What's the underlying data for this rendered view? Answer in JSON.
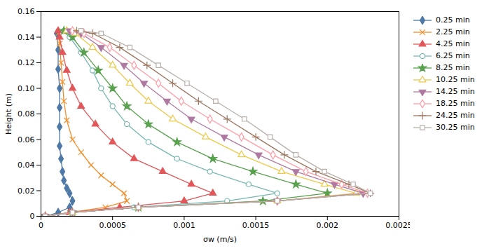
{
  "chart_data": {
    "type": "line",
    "xlabel": "σw (m/s)",
    "ylabel": "Height (m)",
    "xlim": [
      0,
      0.0025
    ],
    "ylim": [
      0,
      0.16
    ],
    "xticks": [
      0,
      0.0005,
      0.001,
      0.0015,
      0.002,
      0.0025
    ],
    "yticks": [
      0,
      0.02,
      0.04,
      0.06,
      0.08,
      {
        "value": 0.1,
        "label": "0.10"
      },
      0.12,
      0.14,
      0.16
    ],
    "grid": false,
    "legend": "right",
    "series": [
      {
        "name": "0.25 min",
        "marker": "diamond",
        "x": [
          3e-05,
          0.00012,
          0.0002,
          0.00022,
          0.0002,
          0.00018,
          0.00016,
          0.00015,
          0.00014,
          0.00013,
          0.00013,
          0.00013,
          0.00013,
          0.00012,
          0.00012,
          0.00011
        ],
        "values": [
          0.0,
          0.003,
          0.007,
          0.012,
          0.018,
          0.022,
          0.028,
          0.035,
          0.045,
          0.055,
          0.07,
          0.085,
          0.1,
          0.115,
          0.13,
          0.143
        ]
      },
      {
        "name": "2.25 min",
        "marker": "x",
        "x": [
          3e-05,
          0.0002,
          0.00045,
          0.0006,
          0.00058,
          0.0005,
          0.00042,
          0.00035,
          0.00028,
          0.00022,
          0.00018,
          0.00016,
          0.00015,
          0.00014,
          0.00013,
          0.00012
        ],
        "values": [
          0.0,
          0.003,
          0.007,
          0.012,
          0.018,
          0.025,
          0.032,
          0.04,
          0.05,
          0.06,
          0.075,
          0.09,
          0.105,
          0.12,
          0.135,
          0.143
        ]
      },
      {
        "name": "4.25 min",
        "marker": "triangle",
        "x": [
          3e-05,
          0.0002,
          0.00055,
          0.001,
          0.0012,
          0.00105,
          0.00085,
          0.00065,
          0.0005,
          0.00038,
          0.00028,
          0.00022,
          0.00018,
          0.00015,
          0.00013,
          0.00012
        ],
        "values": [
          0.0,
          0.003,
          0.007,
          0.012,
          0.018,
          0.025,
          0.035,
          0.045,
          0.058,
          0.072,
          0.086,
          0.1,
          0.114,
          0.128,
          0.14,
          0.145
        ]
      },
      {
        "name": "6.25 min",
        "marker": "circle-open",
        "x": [
          3e-05,
          0.00022,
          0.00065,
          0.0013,
          0.00165,
          0.00145,
          0.00118,
          0.00095,
          0.00075,
          0.0006,
          0.0005,
          0.00042,
          0.00036,
          0.00028,
          0.0002,
          0.00016
        ],
        "values": [
          0.0,
          0.003,
          0.007,
          0.012,
          0.018,
          0.025,
          0.035,
          0.045,
          0.058,
          0.072,
          0.086,
          0.1,
          0.114,
          0.128,
          0.14,
          0.145
        ]
      },
      {
        "name": "8.25 min",
        "marker": "star",
        "x": [
          3e-05,
          0.00022,
          0.00068,
          0.00155,
          0.002,
          0.00178,
          0.00148,
          0.0012,
          0.00095,
          0.00075,
          0.0006,
          0.0005,
          0.0004,
          0.0003,
          0.00022,
          0.00016
        ],
        "values": [
          0.0,
          0.003,
          0.007,
          0.012,
          0.018,
          0.025,
          0.035,
          0.045,
          0.058,
          0.072,
          0.086,
          0.1,
          0.114,
          0.128,
          0.14,
          0.145
        ]
      },
      {
        "name": "10.25 min",
        "marker": "triangle-open",
        "x": [
          3e-05,
          0.00022,
          0.00068,
          0.00165,
          0.0022,
          0.00198,
          0.00168,
          0.0014,
          0.00115,
          0.00092,
          0.00075,
          0.00062,
          0.0005,
          0.00036,
          0.00024,
          0.00018
        ],
        "values": [
          0.0,
          0.003,
          0.007,
          0.012,
          0.018,
          0.025,
          0.035,
          0.048,
          0.062,
          0.076,
          0.09,
          0.104,
          0.118,
          0.132,
          0.143,
          0.145
        ]
      },
      {
        "name": "14.25 min",
        "marker": "triangle-down",
        "x": [
          3e-05,
          0.00022,
          0.00068,
          0.00165,
          0.00225,
          0.00205,
          0.00178,
          0.00152,
          0.00128,
          0.00105,
          0.00088,
          0.00072,
          0.00058,
          0.00042,
          0.00028,
          0.0002
        ],
        "values": [
          0.0,
          0.003,
          0.007,
          0.012,
          0.018,
          0.025,
          0.035,
          0.048,
          0.062,
          0.076,
          0.09,
          0.104,
          0.118,
          0.132,
          0.143,
          0.145
        ]
      },
      {
        "name": "18.25 min",
        "marker": "diamond-open",
        "x": [
          3e-05,
          0.00022,
          0.00068,
          0.00165,
          0.00228,
          0.0021,
          0.00185,
          0.00162,
          0.0014,
          0.00118,
          0.00098,
          0.00082,
          0.00065,
          0.00048,
          0.0003,
          0.00022
        ],
        "values": [
          0.0,
          0.003,
          0.007,
          0.012,
          0.018,
          0.025,
          0.035,
          0.048,
          0.062,
          0.076,
          0.09,
          0.104,
          0.118,
          0.132,
          0.143,
          0.145
        ]
      },
      {
        "name": "24.25 min",
        "marker": "plus",
        "x": [
          3e-05,
          0.00022,
          0.00068,
          0.00165,
          0.0023,
          0.00215,
          0.00192,
          0.0017,
          0.0015,
          0.0013,
          0.0011,
          0.00092,
          0.00074,
          0.00055,
          0.00036,
          0.00025
        ],
        "values": [
          0.0,
          0.003,
          0.007,
          0.012,
          0.018,
          0.025,
          0.035,
          0.048,
          0.062,
          0.076,
          0.09,
          0.104,
          0.118,
          0.132,
          0.143,
          0.145
        ]
      },
      {
        "name": "30.25 min",
        "marker": "square-open",
        "x": [
          3e-05,
          0.00022,
          0.00068,
          0.00165,
          0.0023,
          0.00218,
          0.00198,
          0.00178,
          0.0016,
          0.00142,
          0.00122,
          0.00102,
          0.00082,
          0.00062,
          0.00042,
          0.00028
        ],
        "values": [
          0.0,
          0.003,
          0.007,
          0.012,
          0.018,
          0.025,
          0.035,
          0.048,
          0.062,
          0.076,
          0.09,
          0.104,
          0.118,
          0.132,
          0.143,
          0.145
        ]
      }
    ]
  }
}
